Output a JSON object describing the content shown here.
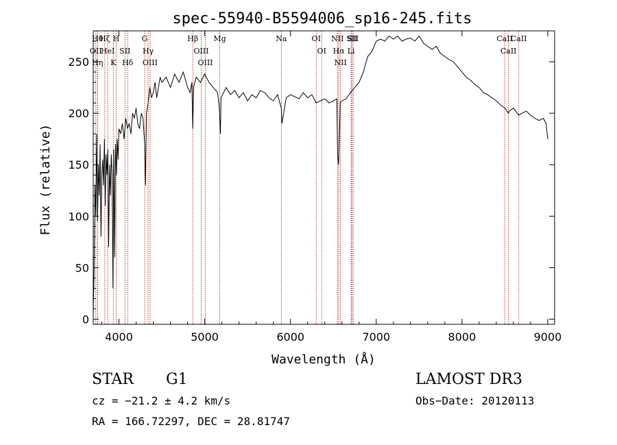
{
  "colors": {
    "line": "#000000",
    "marker": "#c00000",
    "background": "#ffffff"
  },
  "chart_data": {
    "type": "line",
    "title": "spec-55940-B5594006_sp16-245.fits",
    "xlabel": "Wavelength (Å)",
    "ylabel": "Flux (relative)",
    "xlim": [
      3700,
      9080
    ],
    "ylim": [
      -5,
      280
    ],
    "xticks": [
      4000,
      5000,
      6000,
      7000,
      8000,
      9000
    ],
    "yticks": [
      0,
      50,
      100,
      150,
      200,
      250
    ],
    "series": [
      {
        "name": "flux",
        "x": [
          3700,
          3710,
          3720,
          3730,
          3740,
          3750,
          3760,
          3770,
          3780,
          3790,
          3800,
          3810,
          3820,
          3830,
          3840,
          3850,
          3860,
          3870,
          3880,
          3890,
          3900,
          3910,
          3920,
          3930,
          3940,
          3950,
          3960,
          3970,
          3980,
          3990,
          4000,
          4020,
          4040,
          4060,
          4080,
          4100,
          4120,
          4140,
          4160,
          4180,
          4200,
          4220,
          4240,
          4260,
          4280,
          4300,
          4310,
          4320,
          4340,
          4360,
          4380,
          4400,
          4420,
          4440,
          4460,
          4480,
          4500,
          4550,
          4600,
          4650,
          4700,
          4750,
          4800,
          4830,
          4850,
          4861,
          4870,
          4900,
          4950,
          5000,
          5050,
          5100,
          5150,
          5170,
          5183,
          5190,
          5250,
          5300,
          5350,
          5400,
          5450,
          5500,
          5550,
          5600,
          5650,
          5700,
          5750,
          5800,
          5850,
          5893,
          5900,
          5950,
          6000,
          6050,
          6100,
          6150,
          6200,
          6250,
          6300,
          6350,
          6400,
          6450,
          6500,
          6540,
          6550,
          6560,
          6563,
          6570,
          6580,
          6600,
          6650,
          6700,
          6750,
          6800,
          6850,
          6900,
          6950,
          7000,
          7050,
          7100,
          7150,
          7200,
          7250,
          7300,
          7350,
          7400,
          7450,
          7500,
          7550,
          7600,
          7650,
          7700,
          7750,
          7800,
          7850,
          7900,
          7950,
          8000,
          8050,
          8100,
          8150,
          8200,
          8250,
          8300,
          8350,
          8400,
          8450,
          8500,
          8542,
          8550,
          8600,
          8662,
          8700,
          8750,
          8800,
          8850,
          8900,
          8950,
          8980,
          9000
        ],
        "y": [
          5,
          50,
          130,
          100,
          180,
          95,
          150,
          120,
          170,
          80,
          140,
          155,
          130,
          175,
          110,
          160,
          140,
          165,
          70,
          150,
          120,
          160,
          140,
          30,
          165,
          60,
          170,
          140,
          175,
          155,
          185,
          180,
          190,
          175,
          195,
          185,
          190,
          180,
          200,
          195,
          205,
          190,
          185,
          200,
          195,
          170,
          130,
          200,
          210,
          225,
          215,
          220,
          230,
          215,
          225,
          235,
          230,
          235,
          225,
          238,
          230,
          240,
          225,
          220,
          230,
          185,
          225,
          235,
          230,
          238,
          230,
          225,
          220,
          205,
          180,
          215,
          225,
          218,
          222,
          215,
          220,
          212,
          218,
          215,
          222,
          220,
          215,
          212,
          218,
          205,
          190,
          215,
          218,
          216,
          214,
          220,
          215,
          218,
          210,
          212,
          214,
          210,
          212,
          214,
          160,
          150,
          155,
          175,
          210,
          212,
          214,
          220,
          225,
          230,
          240,
          255,
          260,
          270,
          272,
          270,
          275,
          272,
          275,
          270,
          272,
          273,
          270,
          275,
          268,
          265,
          262,
          265,
          258,
          255,
          252,
          250,
          245,
          240,
          235,
          232,
          228,
          225,
          220,
          218,
          215,
          212,
          208,
          205,
          200,
          202,
          205,
          198,
          200,
          202,
          198,
          195,
          193,
          195,
          190,
          175
        ],
        "color": "#000000"
      }
    ],
    "line_markers": {
      "upper": [
        {
          "wavelength": 3750,
          "label": "Hθ"
        },
        {
          "wavelength": 3730,
          "label": "OII"
        },
        {
          "wavelength": 3750,
          "label": "Hη"
        },
        {
          "wavelength": 3835,
          "label": "Hζ"
        },
        {
          "wavelength": 3869,
          "label": "HeI"
        },
        {
          "wavelength": 3934,
          "label": "K"
        },
        {
          "wavelength": 3968,
          "label": "H"
        },
        {
          "wavelength": 4070,
          "label": "SII"
        },
        {
          "wavelength": 4102,
          "label": "Hδ"
        },
        {
          "wavelength": 4300,
          "label": "G"
        },
        {
          "wavelength": 4340,
          "label": "Hγ"
        },
        {
          "wavelength": 4363,
          "label": "OIII"
        },
        {
          "wavelength": 4861,
          "label": "Hβ"
        },
        {
          "wavelength": 4959,
          "label": "OIII"
        },
        {
          "wavelength": 5007,
          "label": "OIII"
        },
        {
          "wavelength": 5175,
          "label": "Mg"
        },
        {
          "wavelength": 5893,
          "label": "Na"
        },
        {
          "wavelength": 6300,
          "label": "OI"
        },
        {
          "wavelength": 6364,
          "label": "OI"
        },
        {
          "wavelength": 6548,
          "label": "NII"
        },
        {
          "wavelength": 6563,
          "label": "Hα"
        },
        {
          "wavelength": 6583,
          "label": "NII"
        },
        {
          "wavelength": 6707,
          "label": "Li"
        },
        {
          "wavelength": 6716,
          "label": "SII"
        },
        {
          "wavelength": 6731,
          "label": "SII"
        },
        {
          "wavelength": 8498,
          "label": "CaII"
        },
        {
          "wavelength": 8542,
          "label": "CaII"
        },
        {
          "wavelength": 8662,
          "label": "CaII"
        }
      ]
    }
  },
  "footer": {
    "object_class": "STAR",
    "subclass": "G1",
    "survey": "LAMOST DR3",
    "velocity": "cz = −21.2 ± 4.2 km/s",
    "obs_date": "Obs−Date: 20120113",
    "coords": "RA = 166.72297, DEC =  28.81747"
  }
}
